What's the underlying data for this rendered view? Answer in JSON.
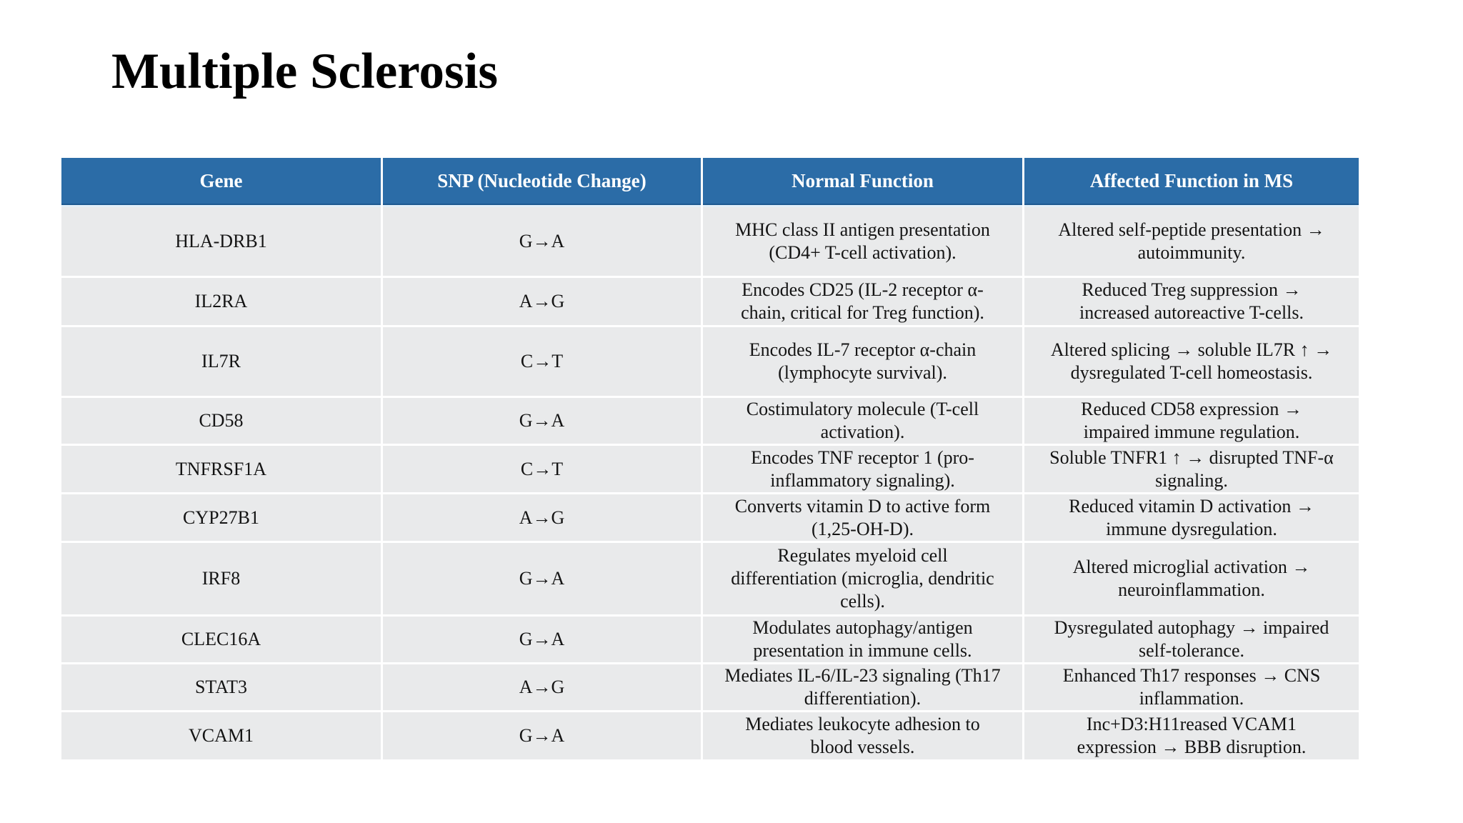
{
  "page": {
    "title": "Multiple Sclerosis"
  },
  "table": {
    "columns": [
      "Gene",
      "SNP (Nucleotide Change)",
      "Normal Function",
      "Affected Function in MS"
    ],
    "rows": [
      {
        "gene": "HLA-DRB1",
        "snp": "G→A",
        "normal": "MHC class II antigen presentation\n(CD4+ T-cell activation).",
        "affected": "Altered self-peptide presentation →\nautoimmunity."
      },
      {
        "gene": "IL2RA",
        "snp": "A→G",
        "normal": "Encodes CD25 (IL-2 receptor α-\nchain, critical for Treg function).",
        "affected": "Reduced Treg suppression →\nincreased autoreactive T-cells."
      },
      {
        "gene": "IL7R",
        "snp": "C→T",
        "normal": "Encodes IL-7 receptor α-chain\n(lymphocyte survival).",
        "affected": "Altered splicing → soluble IL7R ↑ →\ndysregulated T-cell homeostasis."
      },
      {
        "gene": "CD58",
        "snp": "G→A",
        "normal": "Costimulatory molecule (T-cell\nactivation).",
        "affected": "Reduced CD58 expression →\nimpaired immune regulation."
      },
      {
        "gene": "TNFRSF1A",
        "snp": "C→T",
        "normal": "Encodes TNF receptor 1 (pro-\ninflammatory signaling).",
        "affected": "Soluble TNFR1 ↑ → disrupted TNF-α\nsignaling."
      },
      {
        "gene": "CYP27B1",
        "snp": "A→G",
        "normal": "Converts vitamin D to active form\n(1,25-OH-D).",
        "affected": "Reduced vitamin D activation →\nimmune dysregulation."
      },
      {
        "gene": "IRF8",
        "snp": "G→A",
        "normal": "Regulates myeloid cell\ndifferentiation (microglia, dendritic\ncells).",
        "affected": "Altered microglial activation →\nneuroinflammation."
      },
      {
        "gene": "CLEC16A",
        "snp": "G→A",
        "normal": "Modulates autophagy/antigen\npresentation in immune cells.",
        "affected": "Dysregulated autophagy → impaired\nself-tolerance."
      },
      {
        "gene": "STAT3",
        "snp": "A→G",
        "normal": "Mediates IL-6/IL-23 signaling (Th17\ndifferentiation).",
        "affected": "Enhanced Th17 responses → CNS\ninflammation."
      },
      {
        "gene": "VCAM1",
        "snp": "G→A",
        "normal": "Mediates leukocyte adhesion to\nblood vessels.",
        "affected": "Inc+D3:H11reased VCAM1\nexpression → BBB disruption."
      }
    ]
  },
  "colors": {
    "header_bg": "#2B6CA7",
    "header_text": "#FFFFFF",
    "header_border": "#1E5A91",
    "header_gap": "#E2EFF9",
    "row_bg": "#E9EAEB",
    "body_text": "#141414",
    "page_bg": "#FFFFFF"
  }
}
